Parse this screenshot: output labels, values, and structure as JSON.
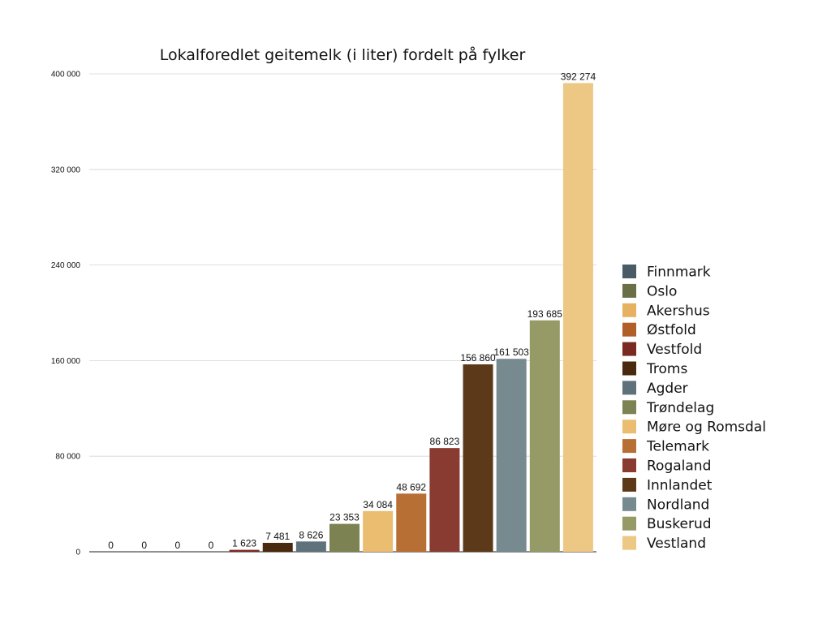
{
  "chart_data": {
    "type": "bar",
    "title": "Lokalforedlet geitemelk (i liter) fordelt på fylker",
    "xlabel": "",
    "ylabel": "",
    "ylim": [
      0,
      400000
    ],
    "yticks": [
      0,
      80000,
      160000,
      240000,
      320000,
      400000
    ],
    "ytick_labels": [
      "0",
      "80 000",
      "160 000",
      "240 000",
      "320 000",
      "400 000"
    ],
    "grid": true,
    "legend_position": "right",
    "categories": [
      "Finnmark",
      "Oslo",
      "Akershus",
      "Østfold",
      "Vestfold",
      "Troms",
      "Agder",
      "Trøndelag",
      "Møre og Romsdal",
      "Telemark",
      "Rogaland",
      "Innlandet",
      "Nordland",
      "Buskerud",
      "Vestland"
    ],
    "values": [
      0,
      0,
      0,
      0,
      1623,
      7481,
      8626,
      23353,
      34084,
      48692,
      86823,
      156860,
      161503,
      193685,
      392274
    ],
    "data_labels": [
      "0",
      "0",
      "0",
      "0",
      "1 623",
      "7 481",
      "8 626",
      "23 353",
      "34 084",
      "48 692",
      "86 823",
      "156 860",
      "161 503",
      "193 685",
      "392 274"
    ],
    "colors": [
      "#4b5b65",
      "#6b6f45",
      "#e6b262",
      "#b15f28",
      "#7b2a22",
      "#4a2a0e",
      "#5f727b",
      "#7d8252",
      "#ebbd70",
      "#b86f34",
      "#8a3b31",
      "#5c3a19",
      "#768a8f",
      "#969a66",
      "#edc784"
    ]
  }
}
